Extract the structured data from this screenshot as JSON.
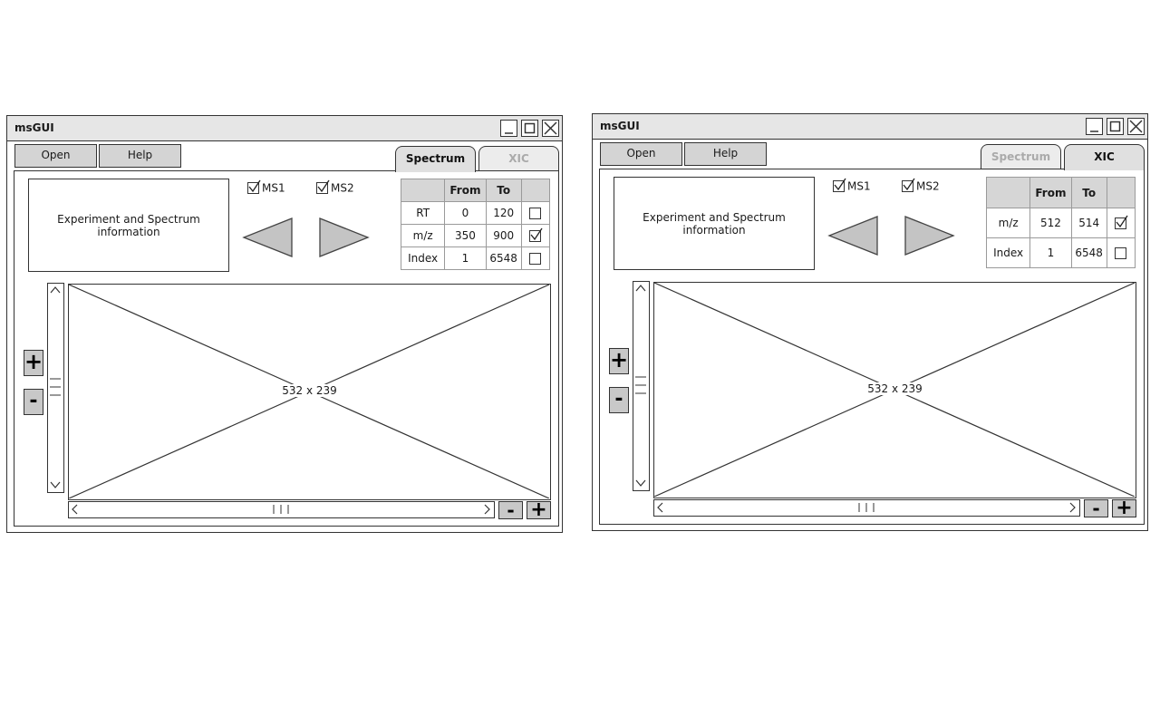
{
  "windows": [
    {
      "title": "msGUI",
      "buttons": {
        "open": "Open",
        "help": "Help"
      },
      "tabs": [
        {
          "label": "Spectrum",
          "active": true
        },
        {
          "label": "XIC",
          "active": false
        }
      ],
      "info_text": "Experiment and Spectrum information",
      "checkboxes": [
        {
          "label": "MS1",
          "checked": true
        },
        {
          "label": "MS2",
          "checked": true
        }
      ],
      "range_table": {
        "headers": [
          "",
          "From",
          "To",
          ""
        ],
        "rows": [
          {
            "name": "RT",
            "from": "0",
            "to": "120",
            "checked": false
          },
          {
            "name": "m/z",
            "from": "350",
            "to": "900",
            "checked": true
          },
          {
            "name": "Index",
            "from": "1",
            "to": "6548",
            "checked": false
          }
        ]
      },
      "plot_label": "532 x 239",
      "zoom": {
        "plus": "+",
        "minus": "-"
      }
    },
    {
      "title": "msGUI",
      "buttons": {
        "open": "Open",
        "help": "Help"
      },
      "tabs": [
        {
          "label": "Spectrum",
          "active": false
        },
        {
          "label": "XIC",
          "active": true
        }
      ],
      "info_text": "Experiment and Spectrum information",
      "checkboxes": [
        {
          "label": "MS1",
          "checked": true
        },
        {
          "label": "MS2",
          "checked": true
        }
      ],
      "range_table": {
        "headers": [
          "",
          "From",
          "To",
          ""
        ],
        "rows": [
          {
            "name": "m/z",
            "from": "512",
            "to": "514",
            "checked": true
          },
          {
            "name": "Index",
            "from": "1",
            "to": "6548",
            "checked": false
          }
        ]
      },
      "plot_label": "532 x 239",
      "zoom": {
        "plus": "+",
        "minus": "-"
      }
    }
  ]
}
